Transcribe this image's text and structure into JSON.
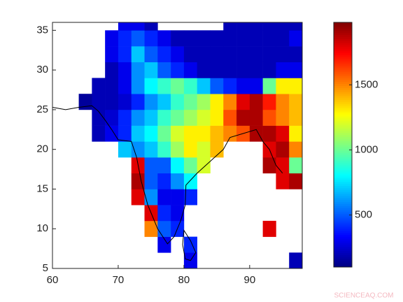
{
  "chart_data": {
    "type": "heatmap",
    "colormap": "jet",
    "clim": [
      100,
      1980
    ],
    "xlim": [
      60,
      98
    ],
    "ylim": [
      5,
      36
    ],
    "xticks": [
      60,
      70,
      80,
      90
    ],
    "yticks": [
      5,
      10,
      15,
      20,
      25,
      30,
      35
    ],
    "colorbar_ticks": [
      500,
      1000,
      1500
    ],
    "xbins": [
      60,
      62,
      64,
      66,
      68,
      70,
      72,
      74,
      76,
      78,
      80,
      82,
      84,
      86,
      88,
      90,
      92,
      94,
      96,
      98
    ],
    "ybins": [
      5,
      7,
      9,
      11,
      13,
      15,
      17,
      19,
      21,
      23,
      25,
      27,
      29,
      31,
      33,
      35,
      36
    ],
    "values": [
      [
        null,
        null,
        null,
        null,
        null,
        null,
        null,
        null,
        null,
        null,
        300,
        null,
        null,
        null,
        null,
        null,
        null,
        null,
        200
      ],
      [
        null,
        null,
        null,
        null,
        null,
        null,
        null,
        null,
        300,
        null,
        400,
        null,
        null,
        null,
        null,
        null,
        null,
        null,
        null
      ],
      [
        null,
        null,
        null,
        null,
        null,
        null,
        null,
        1500,
        500,
        400,
        null,
        null,
        null,
        null,
        null,
        null,
        1800,
        null,
        null
      ],
      [
        null,
        null,
        null,
        null,
        null,
        null,
        null,
        1800,
        400,
        300,
        null,
        null,
        null,
        null,
        null,
        null,
        null,
        null,
        null
      ],
      [
        null,
        null,
        null,
        null,
        null,
        null,
        1800,
        600,
        300,
        300,
        400,
        null,
        null,
        null,
        null,
        null,
        null,
        null,
        null
      ],
      [
        null,
        null,
        null,
        null,
        null,
        null,
        1900,
        500,
        400,
        600,
        800,
        null,
        null,
        null,
        null,
        null,
        null,
        1800,
        1900
      ],
      [
        null,
        null,
        null,
        null,
        null,
        null,
        1800,
        500,
        500,
        800,
        1000,
        1200,
        null,
        null,
        null,
        null,
        1900,
        1800,
        1000
      ],
      [
        null,
        null,
        null,
        null,
        null,
        700,
        600,
        700,
        900,
        1100,
        1300,
        1200,
        1400,
        null,
        null,
        null,
        1800,
        1900,
        1500
      ],
      [
        null,
        null,
        null,
        200,
        300,
        400,
        700,
        800,
        1000,
        1200,
        1300,
        1300,
        1400,
        1500,
        1600,
        1900,
        1900,
        1800,
        1300
      ],
      [
        null,
        null,
        null,
        200,
        250,
        400,
        600,
        700,
        900,
        1000,
        1100,
        1200,
        1300,
        1600,
        1900,
        1900,
        1600,
        1500,
        1400
      ],
      [
        null,
        null,
        150,
        200,
        200,
        250,
        400,
        600,
        700,
        900,
        1000,
        1100,
        1300,
        1500,
        1800,
        1900,
        1700,
        1500,
        1400
      ],
      [
        null,
        null,
        null,
        200,
        200,
        300,
        600,
        800,
        900,
        1000,
        900,
        700,
        500,
        400,
        300,
        300,
        1000,
        1300,
        1300
      ],
      [
        null,
        null,
        null,
        null,
        200,
        300,
        600,
        700,
        500,
        400,
        300,
        200,
        200,
        200,
        200,
        200,
        200,
        300,
        300
      ],
      [
        null,
        null,
        null,
        null,
        300,
        400,
        700,
        500,
        400,
        300,
        200,
        200,
        200,
        200,
        200,
        200,
        200,
        200,
        200
      ],
      [
        null,
        null,
        null,
        null,
        300,
        400,
        500,
        400,
        300,
        200,
        200,
        200,
        200,
        200,
        200,
        200,
        200,
        200,
        300
      ],
      [
        null,
        null,
        null,
        null,
        null,
        300,
        300,
        200,
        null,
        null,
        null,
        null,
        null,
        200,
        200,
        200,
        200,
        200,
        200
      ]
    ],
    "watermark": "SCIENCEAQ.COM"
  }
}
